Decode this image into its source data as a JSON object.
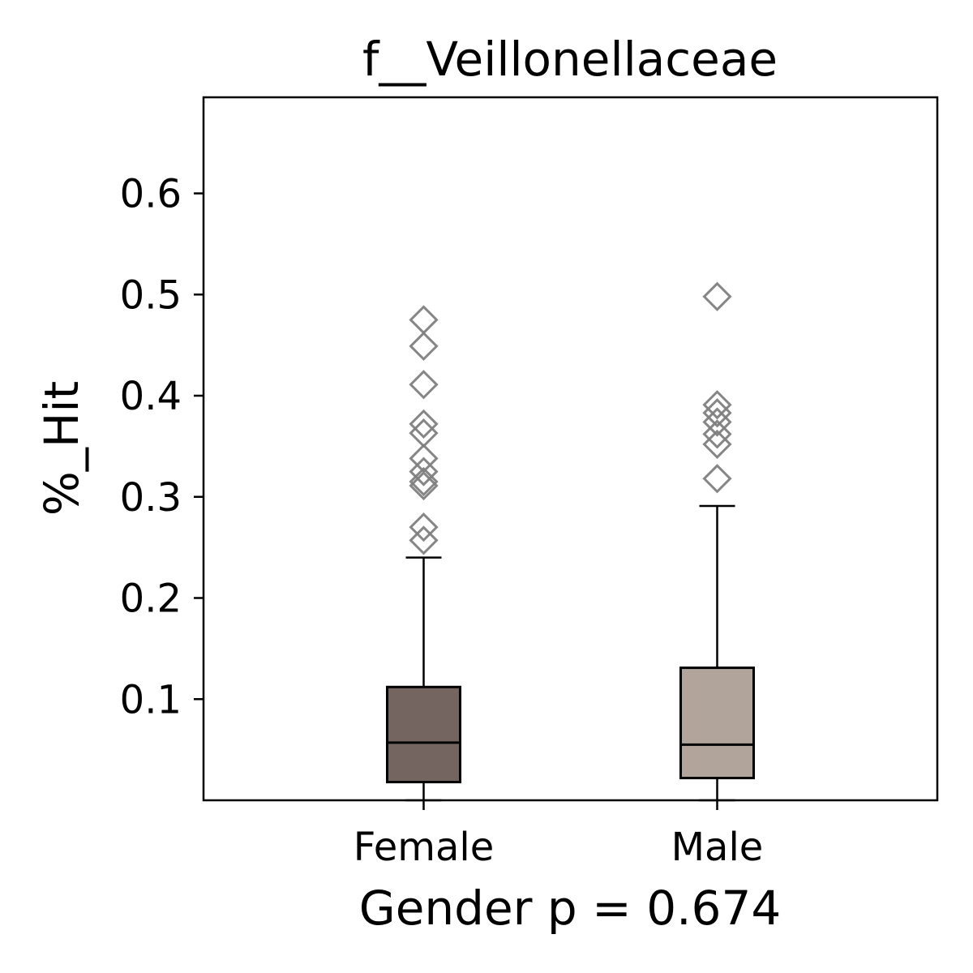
{
  "chart_data": {
    "type": "box",
    "title": "f__Veillonellaceae",
    "xlabel": "Gender p = 0.674",
    "ylabel": "%_Hit",
    "ylim": [
      0.0,
      0.695
    ],
    "yticks": [
      0.1,
      0.2,
      0.3,
      0.4,
      0.5,
      0.6
    ],
    "ytick_labels": [
      "0.1",
      "0.2",
      "0.3",
      "0.4",
      "0.5",
      "0.6"
    ],
    "categories": [
      "Female",
      "Male"
    ],
    "colors": [
      "#756560",
      "#b0a49b"
    ],
    "outlier_color": "#808080",
    "grid": false,
    "boxes": [
      {
        "name": "Female",
        "whisker_low": 0.0,
        "q1": 0.018,
        "median": 0.057,
        "q3": 0.112,
        "whisker_high": 0.24,
        "outliers": [
          0.475,
          0.449,
          0.411,
          0.372,
          0.363,
          0.338,
          0.325,
          0.315,
          0.311,
          0.27,
          0.257
        ]
      },
      {
        "name": "Male",
        "whisker_low": 0.0,
        "q1": 0.022,
        "median": 0.055,
        "q3": 0.131,
        "whisker_high": 0.291,
        "outliers": [
          0.498,
          0.391,
          0.383,
          0.374,
          0.362,
          0.352,
          0.318
        ]
      }
    ]
  }
}
